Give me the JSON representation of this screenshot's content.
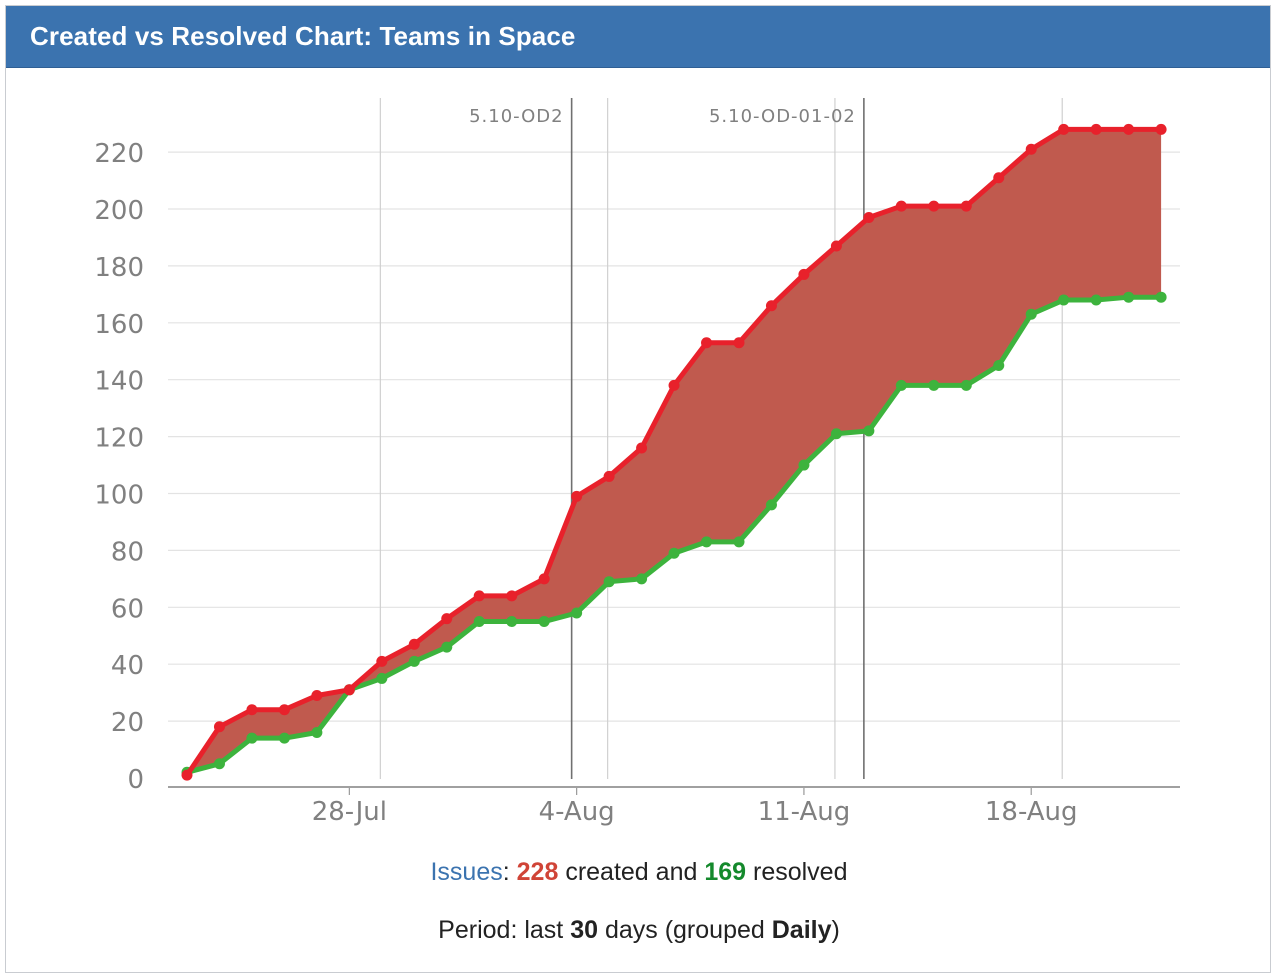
{
  "gadget": {
    "title": "Created vs Resolved Chart: Teams in Space"
  },
  "summary": {
    "issues_label": "Issues",
    "colon": ":",
    "created_count": "228",
    "created_text": "created and",
    "resolved_count": "169",
    "resolved_text": "resolved",
    "period_prefix": "Period: last",
    "period_days": "30",
    "period_mid": "days (grouped",
    "period_grouping": "Daily",
    "period_suffix": ")"
  },
  "colors": {
    "header": "#3b73af",
    "created": "#e8212b",
    "resolved": "#3db33d",
    "gap_fill": "#c05a4e",
    "issues_link": "#3b73af"
  },
  "chart_data": {
    "type": "area",
    "title": "",
    "xlabel": "",
    "ylabel": "",
    "ylim": [
      0,
      235
    ],
    "yticks": [
      0,
      20,
      40,
      60,
      80,
      100,
      120,
      140,
      160,
      180,
      200,
      220
    ],
    "x": [
      "2021-07-23",
      "2021-07-24",
      "2021-07-25",
      "2021-07-26",
      "2021-07-27",
      "2021-07-28",
      "2021-07-29",
      "2021-07-30",
      "2021-07-31",
      "2021-08-01",
      "2021-08-02",
      "2021-08-03",
      "2021-08-04",
      "2021-08-05",
      "2021-08-06",
      "2021-08-07",
      "2021-08-08",
      "2021-08-09",
      "2021-08-10",
      "2021-08-11",
      "2021-08-12",
      "2021-08-13",
      "2021-08-14",
      "2021-08-15",
      "2021-08-16",
      "2021-08-17",
      "2021-08-18",
      "2021-08-19",
      "2021-08-20",
      "2021-08-21",
      "2021-08-22"
    ],
    "x_tick_labels": [
      "28-Jul",
      "4-Aug",
      "11-Aug",
      "18-Aug"
    ],
    "x_tick_dates": [
      "2021-07-28",
      "2021-08-04",
      "2021-08-11",
      "2021-08-18"
    ],
    "series": [
      {
        "name": "created",
        "values": [
          1,
          18,
          24,
          24,
          29,
          31,
          41,
          47,
          56,
          64,
          64,
          70,
          99,
          106,
          116,
          138,
          153,
          153,
          166,
          177,
          187,
          197,
          201,
          201,
          201,
          211,
          221,
          228,
          228,
          228,
          228
        ]
      },
      {
        "name": "resolved",
        "values": [
          2,
          5,
          14,
          14,
          16,
          31,
          35,
          41,
          46,
          55,
          55,
          55,
          58,
          69,
          70,
          79,
          83,
          83,
          96,
          110,
          121,
          122,
          138,
          138,
          138,
          145,
          163,
          168,
          168,
          169,
          169
        ]
      }
    ],
    "versions": [
      {
        "label": "5.10-OD2",
        "date": "2021-08-04"
      },
      {
        "label": "5.10-OD-01-02",
        "date": "2021-08-13"
      }
    ],
    "grid": true,
    "legend": "none"
  }
}
